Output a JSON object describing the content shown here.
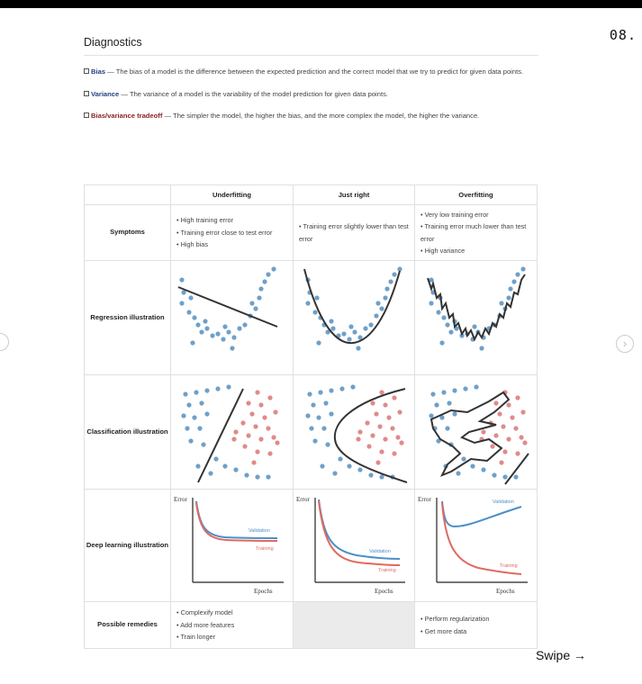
{
  "page_number": "08.",
  "title": "Diagnostics",
  "definitions": [
    {
      "term": "Bias",
      "text": "— The bias of a model is the difference between the expected prediction and the correct model that we try to predict for given data points."
    },
    {
      "term": "Variance",
      "text": "— The variance of a model is the variability of the model prediction for given data points."
    },
    {
      "term": "Bias/variance tradeoff",
      "text": "— The simpler the model, the higher the bias, and the more complex the model, the higher the variance."
    }
  ],
  "table": {
    "columns": [
      "Underfitting",
      "Just right",
      "Overfitting"
    ],
    "rows": {
      "symptoms": "Symptoms",
      "regression": "Regression illustration",
      "classification": "Classification illustration",
      "deep": "Deep learning illustration",
      "remedies": "Possible remedies"
    },
    "symptoms": [
      [
        "High training error",
        "Training error close to test error",
        "High bias"
      ],
      [
        "Training error slightly lower than test error"
      ],
      [
        "Very low training error",
        "Training error much lower than test error",
        "High variance"
      ]
    ],
    "deep_labels": {
      "error": "Error",
      "epochs": "Epochs",
      "validation": "Validation",
      "training": "Training"
    },
    "remedies": [
      [
        "Complexify model",
        "Add more features",
        "Train longer"
      ],
      [],
      [
        "Perform regularization",
        "Get more data"
      ]
    ]
  },
  "colors": {
    "blue_point": "#6fa0c8",
    "red_point": "#e08a8a",
    "validation": "#4d8fc7",
    "training": "#e06a5f",
    "model": "#333333"
  },
  "swipe_label": "Swipe →"
}
